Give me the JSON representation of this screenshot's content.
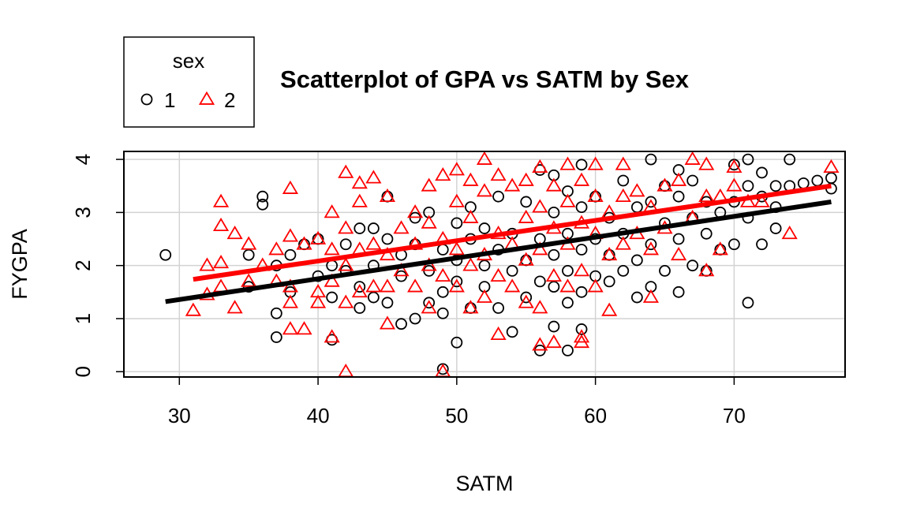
{
  "chart_data": {
    "type": "scatter",
    "title": "Scatterplot of GPA vs SATM by Sex",
    "xlabel": "SATM",
    "ylabel": "FYGPA",
    "xlim": [
      26,
      78
    ],
    "ylim": [
      -0.1,
      4.15
    ],
    "xticks": [
      "30",
      "40",
      "50",
      "60",
      "70"
    ],
    "yticks": [
      "0",
      "1",
      "2",
      "3",
      "4"
    ],
    "grid": true,
    "legend": {
      "title": "sex",
      "placement": "top-left",
      "entries": [
        "1",
        "2"
      ]
    },
    "series": [
      {
        "name": "1",
        "color": "#000000",
        "marker": "circle",
        "points": [
          [
            29,
            2.2
          ],
          [
            35,
            1.6
          ],
          [
            35,
            2.2
          ],
          [
            36,
            3.3
          ],
          [
            36,
            3.15
          ],
          [
            37,
            0.65
          ],
          [
            37,
            1.1
          ],
          [
            37,
            2.0
          ],
          [
            38,
            1.5
          ],
          [
            38,
            2.2
          ],
          [
            39,
            2.4
          ],
          [
            40,
            1.8
          ],
          [
            40,
            2.5
          ],
          [
            41,
            0.6
          ],
          [
            41,
            1.4
          ],
          [
            41,
            2.0
          ],
          [
            42,
            1.9
          ],
          [
            42,
            2.4
          ],
          [
            43,
            1.2
          ],
          [
            43,
            2.7
          ],
          [
            43,
            1.6
          ],
          [
            44,
            2.0
          ],
          [
            44,
            2.7
          ],
          [
            44,
            1.4
          ],
          [
            45,
            1.3
          ],
          [
            45,
            2.5
          ],
          [
            45,
            3.3
          ],
          [
            46,
            0.9
          ],
          [
            46,
            1.8
          ],
          [
            46,
            2.2
          ],
          [
            47,
            1.0
          ],
          [
            47,
            2.4
          ],
          [
            47,
            2.9
          ],
          [
            48,
            1.3
          ],
          [
            48,
            1.9
          ],
          [
            48,
            3.0
          ],
          [
            49,
            0.05
          ],
          [
            49,
            1.1
          ],
          [
            49,
            1.5
          ],
          [
            49,
            2.3
          ],
          [
            50,
            0.55
          ],
          [
            50,
            1.7
          ],
          [
            50,
            2.1
          ],
          [
            50,
            2.8
          ],
          [
            51,
            1.2
          ],
          [
            51,
            2.5
          ],
          [
            51,
            3.1
          ],
          [
            52,
            1.6
          ],
          [
            52,
            2.0
          ],
          [
            52,
            2.7
          ],
          [
            53,
            1.2
          ],
          [
            53,
            2.3
          ],
          [
            53,
            3.3
          ],
          [
            54,
            0.75
          ],
          [
            54,
            1.9
          ],
          [
            54,
            2.6
          ],
          [
            55,
            1.4
          ],
          [
            55,
            2.1
          ],
          [
            55,
            3.2
          ],
          [
            56,
            0.4
          ],
          [
            56,
            1.7
          ],
          [
            56,
            2.5
          ],
          [
            56,
            3.8
          ],
          [
            57,
            0.85
          ],
          [
            57,
            1.6
          ],
          [
            57,
            2.2
          ],
          [
            57,
            3.0
          ],
          [
            57,
            3.7
          ],
          [
            58,
            0.4
          ],
          [
            58,
            1.3
          ],
          [
            58,
            1.9
          ],
          [
            58,
            2.6
          ],
          [
            58,
            3.4
          ],
          [
            59,
            0.8
          ],
          [
            59,
            1.5
          ],
          [
            59,
            2.3
          ],
          [
            59,
            3.1
          ],
          [
            59,
            3.9
          ],
          [
            60,
            1.8
          ],
          [
            60,
            2.5
          ],
          [
            60,
            3.3
          ],
          [
            61,
            1.7
          ],
          [
            61,
            2.2
          ],
          [
            61,
            2.9
          ],
          [
            62,
            1.9
          ],
          [
            62,
            2.6
          ],
          [
            62,
            3.6
          ],
          [
            63,
            1.4
          ],
          [
            63,
            2.1
          ],
          [
            63,
            3.1
          ],
          [
            64,
            1.6
          ],
          [
            64,
            2.4
          ],
          [
            64,
            3.2
          ],
          [
            64,
            4.0
          ],
          [
            65,
            1.9
          ],
          [
            65,
            2.8
          ],
          [
            65,
            3.5
          ],
          [
            66,
            1.5
          ],
          [
            66,
            2.5
          ],
          [
            66,
            3.3
          ],
          [
            66,
            3.8
          ],
          [
            67,
            2.0
          ],
          [
            67,
            2.9
          ],
          [
            67,
            3.6
          ],
          [
            68,
            1.9
          ],
          [
            68,
            2.6
          ],
          [
            68,
            3.2
          ],
          [
            69,
            2.3
          ],
          [
            69,
            3.0
          ],
          [
            70,
            2.4
          ],
          [
            70,
            3.2
          ],
          [
            70,
            3.9
          ],
          [
            71,
            1.3
          ],
          [
            71,
            2.9
          ],
          [
            71,
            3.5
          ],
          [
            71,
            4.0
          ],
          [
            72,
            2.4
          ],
          [
            72,
            3.3
          ],
          [
            72,
            3.75
          ],
          [
            73,
            2.7
          ],
          [
            73,
            3.1
          ],
          [
            73,
            3.5
          ],
          [
            74,
            3.5
          ],
          [
            74,
            4.0
          ],
          [
            75,
            3.55
          ],
          [
            76,
            3.6
          ],
          [
            77,
            3.45
          ],
          [
            77,
            3.65
          ]
        ]
      },
      {
        "name": "2",
        "color": "#ff0000",
        "marker": "triangle",
        "points": [
          [
            31,
            1.15
          ],
          [
            32,
            1.45
          ],
          [
            32,
            2.0
          ],
          [
            33,
            1.6
          ],
          [
            33,
            2.05
          ],
          [
            33,
            2.75
          ],
          [
            33,
            3.2
          ],
          [
            34,
            1.2
          ],
          [
            34,
            2.6
          ],
          [
            35,
            1.7
          ],
          [
            35,
            2.4
          ],
          [
            36,
            2.0
          ],
          [
            37,
            1.7
          ],
          [
            37,
            2.3
          ],
          [
            38,
            0.8
          ],
          [
            38,
            1.3
          ],
          [
            38,
            1.6
          ],
          [
            38,
            2.55
          ],
          [
            38,
            3.45
          ],
          [
            39,
            0.8
          ],
          [
            39,
            2.4
          ],
          [
            40,
            1.3
          ],
          [
            40,
            1.5
          ],
          [
            40,
            2.5
          ],
          [
            41,
            0.65
          ],
          [
            41,
            1.7
          ],
          [
            41,
            2.3
          ],
          [
            41,
            3.0
          ],
          [
            42,
            0.0
          ],
          [
            42,
            1.3
          ],
          [
            42,
            2.0
          ],
          [
            42,
            2.7
          ],
          [
            42,
            3.75
          ],
          [
            43,
            1.5
          ],
          [
            43,
            2.3
          ],
          [
            43,
            3.2
          ],
          [
            43,
            3.55
          ],
          [
            44,
            1.6
          ],
          [
            44,
            2.4
          ],
          [
            44,
            3.65
          ],
          [
            45,
            0.9
          ],
          [
            45,
            1.6
          ],
          [
            45,
            2.2
          ],
          [
            45,
            3.3
          ],
          [
            46,
            1.9
          ],
          [
            46,
            2.7
          ],
          [
            47,
            1.6
          ],
          [
            47,
            2.4
          ],
          [
            47,
            3.0
          ],
          [
            48,
            1.2
          ],
          [
            48,
            2.0
          ],
          [
            48,
            2.8
          ],
          [
            48,
            3.5
          ],
          [
            49,
            0.0
          ],
          [
            49,
            1.8
          ],
          [
            49,
            2.5
          ],
          [
            49,
            3.7
          ],
          [
            50,
            1.6
          ],
          [
            50,
            2.3
          ],
          [
            50,
            3.2
          ],
          [
            50,
            3.8
          ],
          [
            51,
            1.2
          ],
          [
            51,
            2.0
          ],
          [
            51,
            2.9
          ],
          [
            51,
            3.6
          ],
          [
            52,
            1.4
          ],
          [
            52,
            2.2
          ],
          [
            52,
            3.4
          ],
          [
            52,
            4.0
          ],
          [
            53,
            0.7
          ],
          [
            53,
            1.8
          ],
          [
            53,
            2.6
          ],
          [
            53,
            3.7
          ],
          [
            54,
            1.6
          ],
          [
            54,
            2.4
          ],
          [
            54,
            3.5
          ],
          [
            55,
            1.3
          ],
          [
            55,
            2.1
          ],
          [
            55,
            2.9
          ],
          [
            55,
            3.6
          ],
          [
            56,
            0.5
          ],
          [
            56,
            1.2
          ],
          [
            56,
            2.3
          ],
          [
            56,
            3.1
          ],
          [
            56,
            3.85
          ],
          [
            57,
            0.55
          ],
          [
            57,
            1.8
          ],
          [
            57,
            2.7
          ],
          [
            57,
            3.5
          ],
          [
            58,
            1.6
          ],
          [
            58,
            2.4
          ],
          [
            58,
            3.2
          ],
          [
            58,
            3.9
          ],
          [
            59,
            0.55
          ],
          [
            59,
            0.65
          ],
          [
            59,
            1.9
          ],
          [
            59,
            2.8
          ],
          [
            59,
            3.6
          ],
          [
            60,
            1.6
          ],
          [
            60,
            2.6
          ],
          [
            60,
            3.3
          ],
          [
            60,
            3.9
          ],
          [
            61,
            1.15
          ],
          [
            61,
            2.2
          ],
          [
            61,
            3.0
          ],
          [
            62,
            2.4
          ],
          [
            62,
            3.3
          ],
          [
            62,
            3.9
          ],
          [
            63,
            2.6
          ],
          [
            63,
            3.4
          ],
          [
            64,
            1.4
          ],
          [
            64,
            2.3
          ],
          [
            64,
            3.1
          ],
          [
            65,
            2.7
          ],
          [
            65,
            3.5
          ],
          [
            66,
            2.2
          ],
          [
            66,
            3.6
          ],
          [
            67,
            2.9
          ],
          [
            67,
            4.0
          ],
          [
            68,
            1.9
          ],
          [
            68,
            3.3
          ],
          [
            68,
            3.9
          ],
          [
            69,
            2.3
          ],
          [
            69,
            3.3
          ],
          [
            70,
            3.5
          ],
          [
            70,
            3.85
          ],
          [
            71,
            3.2
          ],
          [
            72,
            3.2
          ],
          [
            74,
            2.6
          ],
          [
            77,
            3.85
          ]
        ]
      }
    ],
    "fit_lines": [
      {
        "series": "1",
        "color": "#000000",
        "x": [
          29,
          77
        ],
        "y": [
          1.32,
          3.2
        ]
      },
      {
        "series": "2",
        "color": "#ff0000",
        "x": [
          31,
          77
        ],
        "y": [
          1.74,
          3.5
        ]
      }
    ]
  }
}
